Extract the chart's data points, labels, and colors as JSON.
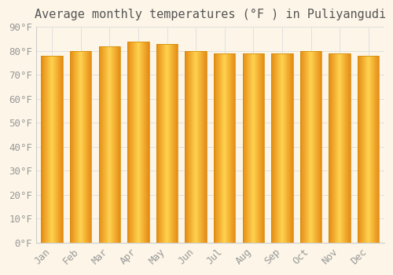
{
  "title": "Average monthly temperatures (°F ) in Puliyangudi",
  "months": [
    "Jan",
    "Feb",
    "Mar",
    "Apr",
    "May",
    "Jun",
    "Jul",
    "Aug",
    "Sep",
    "Oct",
    "Nov",
    "Dec"
  ],
  "values": [
    78,
    80,
    82,
    84,
    83,
    80,
    79,
    79,
    79,
    80,
    79,
    78
  ],
  "bar_color_left": "#F5A623",
  "bar_color_mid": "#FFD966",
  "bar_color_right": "#F5A623",
  "background_color": "#fdf6e8",
  "plot_bg_color": "#fdf6e8",
  "grid_color": "#e0e0e0",
  "ylim": [
    0,
    90
  ],
  "yticks": [
    0,
    10,
    20,
    30,
    40,
    50,
    60,
    70,
    80,
    90
  ],
  "ytick_labels": [
    "0°F",
    "10°F",
    "20°F",
    "30°F",
    "40°F",
    "50°F",
    "60°F",
    "70°F",
    "80°F",
    "90°F"
  ],
  "tick_fontsize": 9,
  "title_fontsize": 11,
  "bar_edge_color": "#cc8800",
  "font_color": "#999999",
  "title_color": "#555555",
  "bar_width": 0.75
}
